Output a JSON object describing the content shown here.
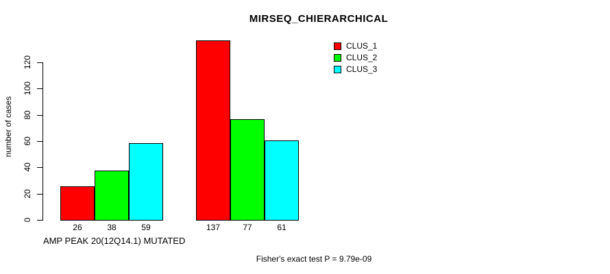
{
  "chart_data": {
    "type": "bar",
    "title": "MIRSEQ_CHIERARCHICAL",
    "ylabel": "number of cases",
    "ylim": [
      0,
      120
    ],
    "yticks": [
      0,
      20,
      40,
      60,
      80,
      100,
      120
    ],
    "grid": false,
    "legend_position": "top-right",
    "bar_value_labels": true,
    "series": [
      {
        "name": "CLUS_1",
        "color": "#FF0000",
        "values": [
          26,
          137
        ]
      },
      {
        "name": "CLUS_2",
        "color": "#00FF00",
        "values": [
          38,
          77
        ]
      },
      {
        "name": "CLUS_3",
        "color": "#00FFFF",
        "values": [
          59,
          61
        ]
      }
    ],
    "groups": [
      {
        "label": "AMP PEAK 20(12Q14.1) MUTATED"
      },
      {
        "label": ""
      }
    ],
    "footnote": "Fisher's exact test P = 9.79e-09"
  }
}
